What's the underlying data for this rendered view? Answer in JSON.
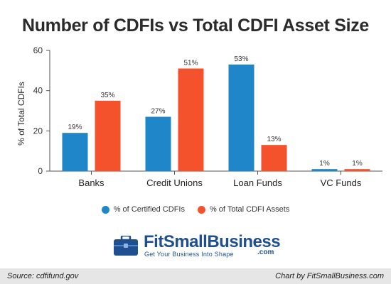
{
  "chart_data": {
    "type": "bar",
    "title": "Number of CDFIs vs Total CDFI Asset Size",
    "ylabel": "% of Total CDFIs",
    "xlabel": "",
    "ylim": [
      0,
      60
    ],
    "yticks": [
      0,
      20,
      40,
      60
    ],
    "categories": [
      "Banks",
      "Credit Unions",
      "Loan Funds",
      "VC Funds"
    ],
    "series": [
      {
        "name": "% of Certified CDFIs",
        "color": "#1f87c9",
        "values": [
          19,
          27,
          53,
          1
        ],
        "labels": [
          "19%",
          "27%",
          "53%",
          "1%"
        ]
      },
      {
        "name": "% of Total CDFI Assets",
        "color": "#f4522d",
        "values": [
          35,
          51,
          13,
          1
        ],
        "labels": [
          "35%",
          "51%",
          "13%",
          "1%"
        ]
      }
    ],
    "legend_position": "bottom",
    "grid": false
  },
  "logo": {
    "name": "FitSmallBusiness",
    "dotcom": ".com",
    "tagline": "Get Your Business Into Shape"
  },
  "footer": {
    "source": "Source: cdfifund.gov",
    "credit": "Chart by FitSmallBusiness.com"
  }
}
